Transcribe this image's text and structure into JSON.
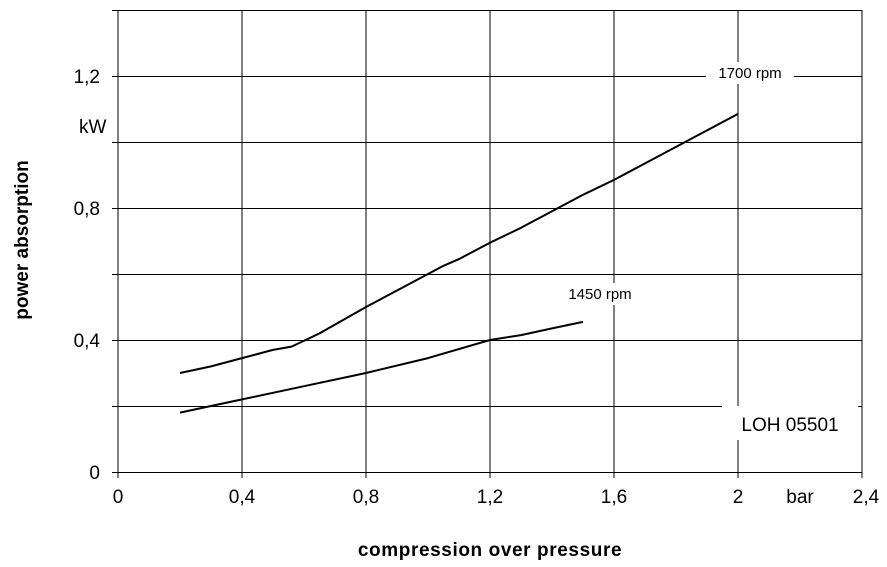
{
  "chart_data": {
    "type": "line",
    "xlabel": "compression over pressure",
    "ylabel": "power absorption",
    "x_unit": "bar",
    "y_unit": "kW",
    "xlim": [
      0,
      2.4
    ],
    "ylim": [
      0,
      1.4
    ],
    "x_ticks": [
      0,
      0.4,
      0.8,
      1.2,
      1.6,
      2.0,
      2.4
    ],
    "x_tick_labels": [
      "0",
      "0,4",
      "0,8",
      "1,2",
      "1,6",
      "2",
      "2,4"
    ],
    "y_ticks": [
      0,
      0.4,
      0.8,
      1.2
    ],
    "y_tick_labels": [
      "0",
      "0,4",
      "0,8",
      "1,2"
    ],
    "grid": true,
    "line_color": "#000000",
    "annotation": "LOH 05501",
    "series": [
      {
        "name": "1700 rpm",
        "x": [
          0.2,
          0.3,
          0.4,
          0.5,
          0.56,
          0.65,
          0.8,
          0.9,
          1.0,
          1.05,
          1.1,
          1.15,
          1.2,
          1.3,
          1.4,
          1.5,
          1.6,
          1.7,
          1.8,
          1.9,
          2.0
        ],
        "y": [
          0.3,
          0.32,
          0.345,
          0.37,
          0.38,
          0.42,
          0.5,
          0.55,
          0.6,
          0.625,
          0.645,
          0.67,
          0.695,
          0.74,
          0.79,
          0.84,
          0.885,
          0.935,
          0.985,
          1.035,
          1.085
        ]
      },
      {
        "name": "1450 rpm",
        "x": [
          0.2,
          0.3,
          0.4,
          0.6,
          0.8,
          1.0,
          1.2,
          1.3,
          1.4,
          1.5
        ],
        "y": [
          0.18,
          0.2,
          0.22,
          0.26,
          0.3,
          0.345,
          0.4,
          0.415,
          0.435,
          0.455
        ]
      }
    ]
  }
}
